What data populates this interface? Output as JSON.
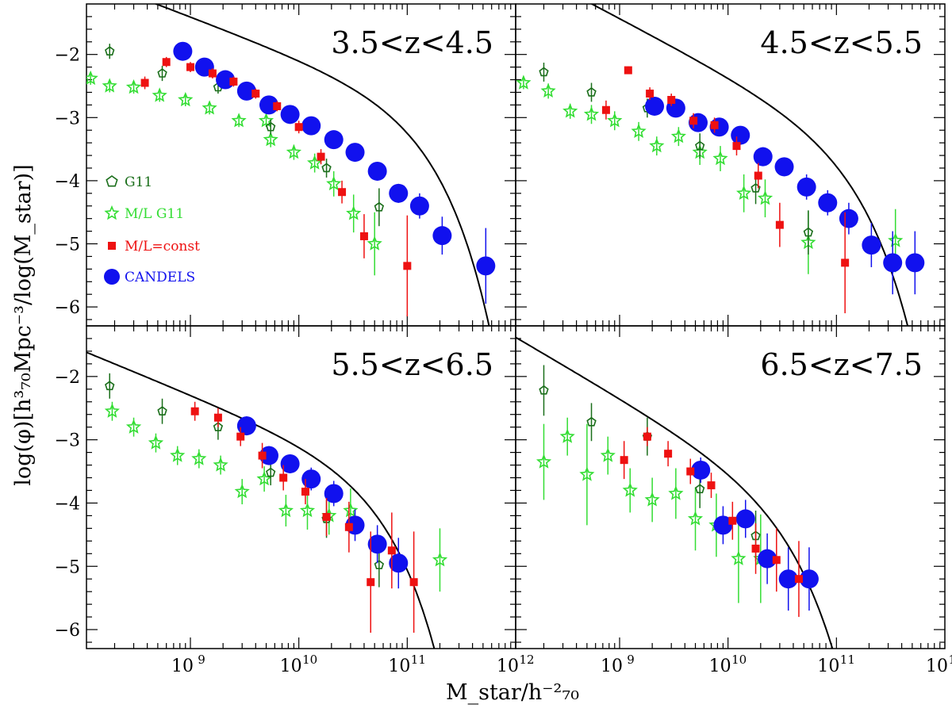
{
  "figure": {
    "ylabel": "log(φ)[h³₇₀Mpc⁻³/log(M_star)]",
    "xlabel": "M_star/h⁻²₇₀",
    "x_ticks": [
      {
        "base": "10",
        "exp": "9",
        "value": 1000000000.0
      },
      {
        "base": "10",
        "exp": "10",
        "value": 10000000000.0
      },
      {
        "base": "10",
        "exp": "11",
        "value": 100000000000.0
      },
      {
        "base": "10",
        "exp": "12",
        "value": 1000000000000.0
      }
    ],
    "y_ticks": [
      "−2",
      "−3",
      "−4",
      "−5",
      "−6"
    ],
    "legend": [
      {
        "key": "G11",
        "label": "G11",
        "color": "#1a6e1a",
        "marker": "pentagon-open"
      },
      {
        "key": "MLG11",
        "label": "M/L G11",
        "color": "#33dd33",
        "marker": "star-open"
      },
      {
        "key": "MLconst",
        "label": "M/L=const",
        "color": "#ee1111",
        "marker": "square-filled"
      },
      {
        "key": "CANDELS",
        "label": "CANDELS",
        "color": "#1111ee",
        "marker": "circle-filled"
      }
    ]
  },
  "chart_data": [
    {
      "type": "scatter",
      "title": "3.5<z<4.5",
      "x_scale": "log",
      "xlim": [
        110000000.0,
        1000000000000.0
      ],
      "ylim": [
        -6.3,
        -1.2
      ],
      "series": [
        {
          "name": "G11",
          "points": [
            [
              180000000.0,
              -1.95,
              0.12
            ],
            [
              550000000.0,
              -2.3,
              0.12
            ],
            [
              1800000000.0,
              -2.52,
              0.1
            ],
            [
              5500000000.0,
              -3.15,
              0.12
            ],
            [
              18000000000.0,
              -3.8,
              0.15
            ],
            [
              55000000000.0,
              -4.42,
              0.3
            ]
          ]
        },
        {
          "name": "M/L G11",
          "points": [
            [
              120000000.0,
              -2.38,
              0.1
            ],
            [
              180000000.0,
              -2.5,
              0.1
            ],
            [
              300000000.0,
              -2.52,
              0.1
            ],
            [
              520000000.0,
              -2.65,
              0.1
            ],
            [
              900000000.0,
              -2.72,
              0.1
            ],
            [
              1500000000.0,
              -2.85,
              0.1
            ],
            [
              2800000000.0,
              -3.05,
              0.1
            ],
            [
              5000000000.0,
              -3.05,
              0.1
            ],
            [
              5500000000.0,
              -3.35,
              0.12
            ],
            [
              9000000000.0,
              -3.55,
              0.12
            ],
            [
              14000000000.0,
              -3.72,
              0.15
            ],
            [
              21000000000.0,
              -4.05,
              0.2
            ],
            [
              32000000000.0,
              -4.52,
              0.3
            ],
            [
              50000000000.0,
              -5.0,
              0.5
            ]
          ]
        },
        {
          "name": "M/L=const",
          "points": [
            [
              380000000.0,
              -2.45,
              0.1
            ],
            [
              600000000.0,
              -2.12,
              0.08
            ],
            [
              1000000000.0,
              -2.2,
              0.08
            ],
            [
              1600000000.0,
              -2.3,
              0.08
            ],
            [
              2500000000.0,
              -2.43,
              0.08
            ],
            [
              4000000000.0,
              -2.62,
              0.08
            ],
            [
              6300000000.0,
              -2.82,
              0.08
            ],
            [
              10000000000.0,
              -3.15,
              0.1
            ],
            [
              16000000000.0,
              -3.62,
              0.12
            ],
            [
              25000000000.0,
              -4.18,
              0.18
            ],
            [
              40000000000.0,
              -4.88,
              0.35
            ],
            [
              100000000000.0,
              -5.35,
              0.8
            ]
          ]
        },
        {
          "name": "CANDELS",
          "points": [
            [
              850000000.0,
              -1.95,
              0.08
            ],
            [
              1350000000.0,
              -2.2,
              0.08
            ],
            [
              2100000000.0,
              -2.4,
              0.08
            ],
            [
              3300000000.0,
              -2.58,
              0.08
            ],
            [
              5300000000.0,
              -2.8,
              0.08
            ],
            [
              8300000000.0,
              -2.95,
              0.08
            ],
            [
              13000000000.0,
              -3.13,
              0.08
            ],
            [
              21000000000.0,
              -3.35,
              0.1
            ],
            [
              33000000000.0,
              -3.55,
              0.1
            ],
            [
              53000000000.0,
              -3.85,
              0.12
            ],
            [
              83000000000.0,
              -4.2,
              0.15
            ],
            [
              130000000000.0,
              -4.4,
              0.2
            ],
            [
              210000000000.0,
              -4.87,
              0.3
            ],
            [
              530000000000.0,
              -5.35,
              0.6
            ]
          ]
        }
      ],
      "schechter_fit": {
        "log_phi_star": -3.0,
        "log_m_star": 10.9,
        "alpha": -1.65
      }
    },
    {
      "type": "scatter",
      "title": "4.5<z<5.5",
      "x_scale": "log",
      "xlim": [
        110000000.0,
        1000000000000.0
      ],
      "ylim": [
        -6.3,
        -1.2
      ],
      "series": [
        {
          "name": "G11",
          "points": [
            [
              200000000.0,
              -2.28,
              0.15
            ],
            [
              550000000.0,
              -2.6,
              0.15
            ],
            [
              1800000000.0,
              -2.85,
              0.15
            ],
            [
              5500000000.0,
              -3.45,
              0.2
            ],
            [
              18000000000.0,
              -4.12,
              0.25
            ],
            [
              55000000000.0,
              -4.82,
              0.35
            ]
          ]
        },
        {
          "name": "M/L G11",
          "points": [
            [
              130000000.0,
              -2.45,
              0.1
            ],
            [
              220000000.0,
              -2.58,
              0.12
            ],
            [
              350000000.0,
              -2.9,
              0.12
            ],
            [
              550000000.0,
              -2.95,
              0.15
            ],
            [
              900000000.0,
              -3.05,
              0.15
            ],
            [
              1500000000.0,
              -3.22,
              0.15
            ],
            [
              2200000000.0,
              -3.45,
              0.15
            ],
            [
              3500000000.0,
              -3.3,
              0.15
            ],
            [
              5500000000.0,
              -3.55,
              0.2
            ],
            [
              8500000000.0,
              -3.65,
              0.2
            ],
            [
              14000000000.0,
              -4.2,
              0.3
            ],
            [
              22000000000.0,
              -4.28,
              0.3
            ],
            [
              55000000000.0,
              -4.98,
              0.5
            ],
            [
              350000000000.0,
              -4.95,
              0.5
            ]
          ]
        },
        {
          "name": "M/L=const",
          "points": [
            [
              1200000000.0,
              -2.25,
              0.06
            ],
            [
              750000000.0,
              -2.88,
              0.15
            ],
            [
              1900000000.0,
              -2.62,
              0.1
            ],
            [
              3000000000.0,
              -2.72,
              0.1
            ],
            [
              4800000000.0,
              -3.05,
              0.12
            ],
            [
              7500000000.0,
              -3.12,
              0.12
            ],
            [
              12000000000.0,
              -3.45,
              0.15
            ],
            [
              19000000000.0,
              -3.92,
              0.2
            ],
            [
              30000000000.0,
              -4.7,
              0.35
            ],
            [
              120000000000.0,
              -5.3,
              0.8
            ]
          ]
        },
        {
          "name": "CANDELS",
          "points": [
            [
              2100000000.0,
              -2.82,
              0.12
            ],
            [
              3300000000.0,
              -2.85,
              0.1
            ],
            [
              5300000000.0,
              -3.08,
              0.1
            ],
            [
              8300000000.0,
              -3.15,
              0.1
            ],
            [
              13000000000.0,
              -3.28,
              0.12
            ],
            [
              21000000000.0,
              -3.62,
              0.15
            ],
            [
              33000000000.0,
              -3.78,
              0.15
            ],
            [
              53000000000.0,
              -4.1,
              0.2
            ],
            [
              83000000000.0,
              -4.35,
              0.2
            ],
            [
              130000000000.0,
              -4.6,
              0.25
            ],
            [
              210000000000.0,
              -5.02,
              0.35
            ],
            [
              330000000000.0,
              -5.3,
              0.5
            ],
            [
              530000000000.0,
              -5.3,
              0.5
            ]
          ]
        }
      ],
      "schechter_fit": {
        "log_phi_star": -3.5,
        "log_m_star": 10.9,
        "alpha": -1.9
      }
    },
    {
      "type": "scatter",
      "title": "5.5<z<6.5",
      "x_scale": "log",
      "xlim": [
        110000000.0,
        1000000000000.0
      ],
      "ylim": [
        -6.3,
        -1.2
      ],
      "series": [
        {
          "name": "G11",
          "points": [
            [
              180000000.0,
              -2.15,
              0.2
            ],
            [
              550000000.0,
              -2.55,
              0.2
            ],
            [
              1800000000.0,
              -2.8,
              0.2
            ],
            [
              5500000000.0,
              -3.52,
              0.2
            ],
            [
              18000000000.0,
              -4.25,
              0.3
            ],
            [
              55000000000.0,
              -4.98,
              0.35
            ]
          ]
        },
        {
          "name": "M/L G11",
          "points": [
            [
              190000000.0,
              -2.55,
              0.15
            ],
            [
              300000000.0,
              -2.8,
              0.15
            ],
            [
              480000000.0,
              -3.05,
              0.15
            ],
            [
              760000000.0,
              -3.25,
              0.15
            ],
            [
              1200000000.0,
              -3.3,
              0.15
            ],
            [
              1900000000.0,
              -3.4,
              0.15
            ],
            [
              3000000000.0,
              -3.82,
              0.2
            ],
            [
              4800000000.0,
              -3.62,
              0.2
            ],
            [
              7600000000.0,
              -4.12,
              0.25
            ],
            [
              12000000000.0,
              -4.12,
              0.3
            ],
            [
              19000000000.0,
              -4.2,
              0.3
            ],
            [
              30000000000.0,
              -4.12,
              0.35
            ],
            [
              200000000000.0,
              -4.9,
              0.5
            ]
          ]
        },
        {
          "name": "M/L=const",
          "points": [
            [
              1100000000.0,
              -2.55,
              0.15
            ],
            [
              1800000000.0,
              -2.65,
              0.15
            ],
            [
              2900000000.0,
              -2.95,
              0.15
            ],
            [
              4600000000.0,
              -3.25,
              0.2
            ],
            [
              7200000000.0,
              -3.6,
              0.2
            ],
            [
              11500000000.0,
              -3.82,
              0.2
            ],
            [
              18000000000.0,
              -4.22,
              0.3
            ],
            [
              29000000000.0,
              -4.38,
              0.4
            ],
            [
              46000000000.0,
              -5.25,
              0.8
            ],
            [
              72000000000.0,
              -4.75,
              0.6
            ],
            [
              115000000000.0,
              -5.25,
              0.8
            ]
          ]
        },
        {
          "name": "CANDELS",
          "points": [
            [
              3300000000.0,
              -2.78,
              0.15
            ],
            [
              5300000000.0,
              -3.25,
              0.15
            ],
            [
              8300000000.0,
              -3.38,
              0.15
            ],
            [
              13000000000.0,
              -3.62,
              0.18
            ],
            [
              21000000000.0,
              -3.85,
              0.2
            ],
            [
              33000000000.0,
              -4.35,
              0.25
            ],
            [
              53000000000.0,
              -4.65,
              0.3
            ],
            [
              83000000000.0,
              -4.95,
              0.4
            ]
          ]
        }
      ],
      "schechter_fit": {
        "log_phi_star": -3.7,
        "log_m_star": 10.5,
        "alpha": -1.7
      }
    },
    {
      "type": "scatter",
      "title": "6.5<z<7.5",
      "x_scale": "log",
      "xlim": [
        110000000.0,
        1000000000000.0
      ],
      "ylim": [
        -6.3,
        -1.2
      ],
      "series": [
        {
          "name": "G11",
          "points": [
            [
              200000000.0,
              -2.22,
              0.4
            ],
            [
              550000000.0,
              -2.72,
              0.3
            ],
            [
              1800000000.0,
              -2.95,
              0.3
            ],
            [
              5500000000.0,
              -3.78,
              0.3
            ],
            [
              18000000000.0,
              -4.52,
              0.4
            ]
          ]
        },
        {
          "name": "M/L G11",
          "points": [
            [
              200000000.0,
              -3.35,
              0.6
            ],
            [
              330000000.0,
              -2.95,
              0.3
            ],
            [
              500000000.0,
              -3.55,
              0.8
            ],
            [
              780000000.0,
              -3.25,
              0.3
            ],
            [
              1250000000.0,
              -3.8,
              0.35
            ],
            [
              2000000000.0,
              -3.95,
              0.35
            ],
            [
              3300000000.0,
              -3.85,
              0.4
            ],
            [
              5000000000.0,
              -4.25,
              0.5
            ],
            [
              7800000000.0,
              -4.35,
              0.5
            ],
            [
              12500000000.0,
              -4.88,
              0.7
            ],
            [
              20000000000.0,
              -4.88,
              0.7
            ]
          ]
        },
        {
          "name": "M/L=const",
          "points": [
            [
              1100000000.0,
              -3.32,
              0.3
            ],
            [
              1800000000.0,
              -2.95,
              0.15
            ],
            [
              2800000000.0,
              -3.22,
              0.2
            ],
            [
              4500000000.0,
              -3.5,
              0.2
            ],
            [
              7000000000.0,
              -3.72,
              0.2
            ],
            [
              11000000000.0,
              -4.28,
              0.3
            ],
            [
              18000000000.0,
              -4.72,
              0.4
            ],
            [
              28000000000.0,
              -4.9,
              0.5
            ],
            [
              45000000000.0,
              -5.2,
              0.6
            ]
          ]
        },
        {
          "name": "CANDELS",
          "points": [
            [
              5600000000.0,
              -3.48,
              0.2
            ],
            [
              9000000000.0,
              -4.35,
              0.3
            ],
            [
              14500000000.0,
              -4.25,
              0.3
            ],
            [
              23000000000.0,
              -4.88,
              0.4
            ],
            [
              36000000000.0,
              -5.2,
              0.5
            ],
            [
              56000000000.0,
              -5.2,
              0.5
            ]
          ]
        }
      ],
      "schechter_fit": {
        "log_phi_star": -4.0,
        "log_m_star": 10.3,
        "alpha": -2.0
      }
    }
  ]
}
